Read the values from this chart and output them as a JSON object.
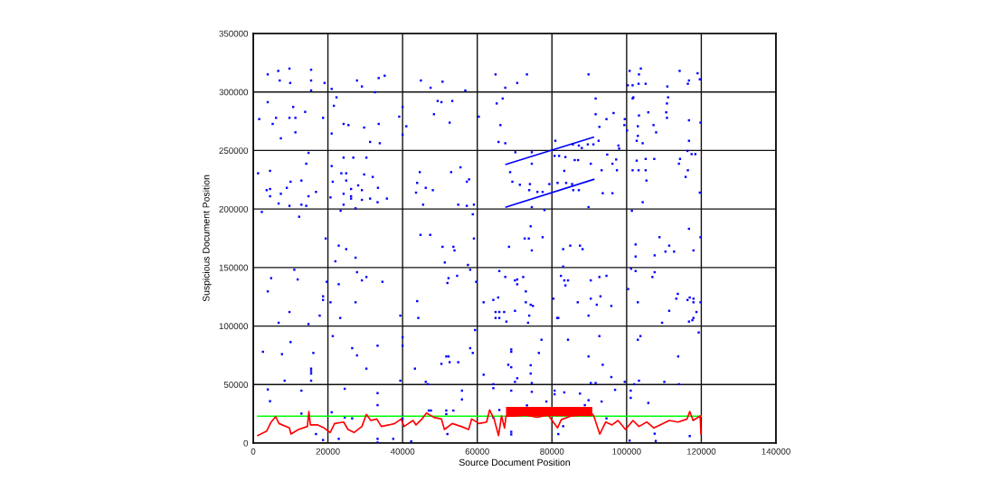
{
  "chart_data": {
    "type": "scatter",
    "xlabel": "Source Document Position",
    "ylabel": "Suspicious Document Position",
    "xlim": [
      0,
      140000
    ],
    "xticks": [
      0,
      20000,
      40000,
      60000,
      80000,
      100000,
      120000,
      140000
    ],
    "ylim": [
      0,
      350000
    ],
    "yticks": [
      0,
      50000,
      100000,
      150000,
      200000,
      250000,
      300000,
      350000
    ],
    "grid": true,
    "legend": false,
    "series": [
      {
        "marker": "square",
        "color": "#0000ff",
        "x": [
          3880,
          6700,
          9700,
          15500,
          7100,
          9900,
          15500,
          19100,
          15500,
          21000,
          27800,
          29100,
          33600,
          35200,
          32600,
          44900,
          47500,
          50700,
          56800,
          64900,
          67500,
          3880,
          10700,
          13900,
          1600,
          6100,
          9700,
          11300,
          18700,
          5200,
          11300,
          7400,
          22300,
          21600,
          24200,
          25500,
          29700,
          33600,
          31300,
          33900,
          21000,
          40000,
          39100,
          41000,
          40000,
          49400,
          50400,
          53300,
          48400,
          52600,
          60400,
          65200,
          66800,
          66200,
          65700,
          67500,
          14800,
          14200,
          4500,
          1300,
          10000,
          12900,
          3600,
          4500,
          9000,
          7400,
          16800,
          4500,
          14800,
          6800,
          9700,
          12900,
          14200,
          2300,
          12300,
          24200,
          26800,
          30300,
          21000,
          23600,
          24900,
          29700,
          32000,
          21300,
          24900,
          28100,
          26200,
          29100,
          33400,
          24200,
          26200,
          26200,
          29100,
          31300,
          33300,
          35800,
          20700,
          24200,
          27400,
          23400,
          44600,
          43900,
          46200,
          43600,
          48100,
          53000,
          55500,
          57800,
          57200,
          45500,
          54900,
          57200,
          59100,
          58800,
          44800,
          47400,
          59100,
          19400,
          73300,
          70700,
          89800,
          100800,
          103800,
          103300,
          114200,
          119000,
          116700,
          116400,
          100300,
          101600,
          103200,
          105100,
          110900,
          119600,
          91700,
          91700,
          96500,
          94600,
          92700,
          99500,
          99400,
          100100,
          101600,
          101800,
          111100,
          110800,
          110600,
          110800,
          103300,
          105800,
          107200,
          103000,
          107900,
          103000,
          102700,
          104300,
          116700,
          119800,
          116700,
          80900,
          92500,
          91100,
          87200,
          88000,
          89600,
          85600,
          97800,
          98000,
          70200,
          74600,
          80700,
          81900,
          83600,
          87000,
          86100,
          90400,
          94800,
          97200,
          96200,
          93300,
          97400,
          83300,
          74600,
          68800,
          69400,
          71400,
          74100,
          79300,
          81500,
          83800,
          85400,
          73900,
          76100,
          77500,
          85700,
          87200,
          93600,
          96200,
          74600,
          78000,
          89800,
          101400,
          102700,
          105100,
          107400,
          114300,
          114000,
          116300,
          117400,
          118400,
          116400,
          101600,
          103200,
          105100,
          115800,
          105300,
          104300,
          119600,
          74300,
          72700,
          73800,
          77500,
          116700,
          108800,
          119800,
          22900,
          24900,
          27400,
          22000,
          50700,
          53600,
          53900,
          51300,
          57500,
          58100,
          68500,
          11000,
          4800,
          11900,
          3900,
          18700,
          18700,
          9700,
          17800,
          6800,
          14800,
          19700,
          27800,
          30300,
          29100,
          34600,
          22900,
          20700,
          27400,
          23300,
          39400,
          52300,
          52000,
          54600,
          43900,
          44200,
          59700,
          65900,
          67500,
          64300,
          65600,
          61700,
          64900,
          65900,
          67200,
          64900,
          65900,
          67800,
          2600,
          10000,
          7700,
          16100,
          15500,
          15500,
          15500,
          8400,
          15500,
          21300,
          26500,
          27800,
          33300,
          30300,
          40000,
          40000,
          39400,
          43300,
          50400,
          51700,
          52300,
          52600,
          54900,
          58100,
          58800,
          59400,
          61700,
          68300,
          69100,
          69100,
          69100,
          46200,
          46800,
          64300,
          74600,
          83000,
          84900,
          87500,
          88200,
          102400,
          102400,
          107500,
          111400,
          110400,
          112700,
          117900,
          70100,
          70700,
          70700,
          72300,
          73000,
          73000,
          74300,
          74900,
          70100,
          73900,
          73600,
          82400,
          83300,
          84300,
          83600,
          90400,
          92700,
          94600,
          80400,
          86900,
          90400,
          93000,
          92000,
          95900,
          89800,
          81400,
          81700,
          83000,
          101200,
          102400,
          107500,
          106900,
          100400,
          103000,
          113700,
          113300,
          116300,
          116900,
          117900,
          117900,
          111400,
          118700,
          117900,
          117600,
          116700,
          109500,
          119800,
          77200,
          76500,
          74300,
          74300,
          70700,
          74600,
          70100,
          84300,
          92700,
          89800,
          93600,
          95900,
          90400,
          91700,
          99500,
          103000,
          103700,
          113800,
          103300,
          102000,
          110100,
          114000,
          119300,
          3900,
          4500,
          12900,
          12900,
          16800,
          18700,
          21000,
          24500,
          24500,
          26500,
          22900,
          33300,
          33300,
          33300,
          33300,
          37500,
          40000,
          40000,
          42300,
          47000,
          47600,
          51700,
          53600,
          51700,
          52000,
          55900,
          55900,
          64300,
          69100,
          65900,
          64300,
          69100,
          69100,
          74600,
          78500,
          80700,
          80700,
          83300,
          87500,
          89800,
          93300,
          96900,
          94600,
          81700,
          83000,
          101100,
          101100,
          105800,
          100800,
          107500,
          107800,
          116900,
          73300,
          88800
        ],
        "values": [
          315000,
          318000,
          320000,
          319000,
          309800,
          307700,
          309800,
          307700,
          301300,
          302600,
          309800,
          304700,
          311900,
          313900,
          299800,
          309800,
          303600,
          308800,
          301300,
          315000,
          303600,
          291300,
          287200,
          283000,
          276800,
          277900,
          277900,
          277900,
          277900,
          272700,
          265500,
          260400,
          295400,
          288200,
          272700,
          271700,
          269600,
          272700,
          257300,
          256200,
          264500,
          287200,
          278900,
          270700,
          263500,
          292300,
          291300,
          292300,
          281000,
          273800,
          278900,
          290200,
          294400,
          271700,
          257300,
          256200,
          248000,
          238700,
          232600,
          230500,
          223300,
          224300,
          216100,
          217100,
          218100,
          213000,
          214600,
          210900,
          210900,
          204700,
          202700,
          203700,
          202700,
          197500,
          193400,
          243900,
          243900,
          243900,
          236700,
          230500,
          230500,
          229500,
          227400,
          223300,
          224300,
          220200,
          217100,
          216100,
          218100,
          213000,
          210900,
          208900,
          207800,
          208900,
          205800,
          208900,
          209900,
          203700,
          200600,
          198500,
          231500,
          222300,
          218100,
          214000,
          216100,
          231500,
          235600,
          225300,
          223300,
          203700,
          203700,
          202700,
          203700,
          195500,
          177900,
          177900,
          174800,
          174800,
          315000,
          307700,
          315000,
          318000,
          320000,
          315000,
          318000,
          316000,
          309800,
          307000,
          305700,
          305700,
          307000,
          307000,
          304700,
          310800,
          294400,
          281000,
          282000,
          276800,
          270200,
          276800,
          271700,
          267100,
          294400,
          295400,
          295400,
          290200,
          282600,
          277900,
          279900,
          282600,
          271700,
          270700,
          265500,
          262500,
          258300,
          256200,
          275800,
          273800,
          258300,
          258300,
          258300,
          255200,
          254200,
          252100,
          255200,
          255200,
          254200,
          251600,
          248500,
          248500,
          245400,
          245400,
          244400,
          241800,
          241800,
          238700,
          246500,
          242300,
          238700,
          233100,
          233100,
          232600,
          238700,
          231500,
          223300,
          220700,
          221300,
          221300,
          222300,
          222300,
          221300,
          216100,
          214600,
          214600,
          216100,
          216100,
          213500,
          213500,
          201600,
          199100,
          201600,
          198500,
          241300,
          242800,
          242800,
          242800,
          238700,
          249600,
          246900,
          246900,
          233100,
          233100,
          233100,
          233100,
          227400,
          224300,
          205800,
          214000,
          185200,
          174800,
          174800,
          175900,
          183100,
          175900,
          175900,
          168700,
          165700,
          158400,
          155300,
          167700,
          167700,
          164600,
          154300,
          152200,
          148100,
          167700,
          148100,
          140900,
          139800,
          129600,
          125400,
          122300,
          112000,
          108900,
          102800,
          101700,
          137800,
          146000,
          141900,
          139000,
          137800,
          135700,
          120300,
          120300,
          106900,
          108900,
          140900,
          136800,
          142900,
          121300,
          106900,
          137800,
          147000,
          142000,
          122300,
          124400,
          120300,
          112000,
          112000,
          112000,
          106900,
          106900,
          103800,
          78000,
          86300,
          76000,
          77000,
          63600,
          61500,
          59400,
          53300,
          53300,
          91400,
          81100,
          74900,
          83200,
          63600,
          90400,
          83200,
          53300,
          63600,
          67700,
          74000,
          74000,
          69100,
          69100,
          81100,
          77000,
          96600,
          58400,
          66900,
          64800,
          78000,
          80000,
          52300,
          50300,
          50300,
          164600,
          165700,
          168700,
          168700,
          165700,
          169700,
          159400,
          160400,
          168700,
          163600,
          163600,
          164600,
          139000,
          139800,
          135700,
          141900,
          129600,
          120300,
          118200,
          117200,
          113000,
          108900,
          102800,
          142900,
          139000,
          139000,
          134700,
          139000,
          141900,
          142900,
          123400,
          120300,
          123400,
          125400,
          118200,
          117200,
          108900,
          106900,
          106900,
          150800,
          149000,
          147000,
          146000,
          141900,
          131600,
          120300,
          127500,
          123400,
          122300,
          124400,
          123400,
          120300,
          113000,
          112000,
          106900,
          105000,
          103800,
          102800,
          120300,
          88300,
          77000,
          66500,
          59400,
          55400,
          51300,
          52300,
          88300,
          91400,
          74000,
          66900,
          56400,
          51300,
          51300,
          52300,
          88300,
          91400,
          74000,
          53300,
          50300,
          52300,
          50300,
          94500,
          45800,
          35800,
          44800,
          25200,
          7700,
          2600,
          26300,
          46400,
          21900,
          21100,
          3600,
          42700,
          32400,
          3600,
          500,
          3600,
          23200,
          20600,
          1500,
          27800,
          27800,
          27800,
          27800,
          24700,
          7700,
          44800,
          37300,
          46900,
          44800,
          28300,
          21900,
          9600,
          7400,
          43800,
          35500,
          44800,
          41700,
          43300,
          42300,
          36600,
          35500,
          45500,
          21100,
          7700,
          14400,
          44800,
          38600,
          34300,
          2100,
          8000,
          1800,
          6000,
          32200,
          32400
        ]
      },
      {
        "type": "line",
        "color": "#0000ff",
        "x": [
          67700,
          91100
        ],
        "values": [
          238200,
          261400
        ]
      },
      {
        "type": "line",
        "color": "#0000ff",
        "x": [
          67700,
          91200
        ],
        "values": [
          201600,
          225300
        ]
      },
      {
        "type": "line",
        "color": "#00ff00",
        "x": [
          1200,
          120000
        ],
        "values": [
          23000,
          23000
        ]
      },
      {
        "type": "line",
        "color": "#ff0000",
        "x": [
          1200,
          3600,
          4800,
          6000,
          6900,
          9700,
          10100,
          12100,
          14500,
          14900,
          15300,
          17300,
          19000,
          20600,
          21800,
          24200,
          25400,
          27000,
          29100,
          30300,
          31500,
          33100,
          34300,
          36300,
          37900,
          39600,
          40400,
          42800,
          43600,
          45200,
          46400,
          48400,
          50400,
          51200,
          53300,
          55700,
          57700,
          58500,
          60500,
          62500,
          63300,
          64500,
          65700,
          66500,
          67300,
          67700,
          70000,
          73000,
          76000,
          79000,
          81500,
          82500,
          85000,
          88000,
          90800,
          91200,
          92800,
          94400,
          96100,
          97700,
          99700,
          101700,
          103300,
          105400,
          107300,
          109700,
          111400,
          113800,
          116200,
          116900,
          117800,
          119700,
          119900
        ],
        "values": [
          6400,
          10300,
          18000,
          22600,
          16700,
          12900,
          7700,
          11600,
          14200,
          27000,
          15500,
          15500,
          12900,
          9000,
          16700,
          18000,
          11600,
          9000,
          14200,
          24500,
          19300,
          20600,
          14200,
          15500,
          16700,
          20600,
          14200,
          19300,
          15500,
          20600,
          25700,
          21900,
          20600,
          11600,
          16700,
          14200,
          11600,
          20600,
          16700,
          18000,
          28300,
          20600,
          6400,
          23200,
          12900,
          23000,
          23000,
          24000,
          22000,
          24000,
          13000,
          20000,
          23000,
          24000,
          25000,
          23200,
          7700,
          18000,
          15500,
          19300,
          11600,
          19300,
          14200,
          18000,
          12900,
          16700,
          19300,
          18000,
          20600,
          27000,
          19300,
          23200,
          7700
        ],
        "lower": [
          null,
          null,
          null,
          null,
          null,
          null,
          null,
          null,
          null,
          null,
          null,
          null,
          null,
          null,
          null,
          null,
          null,
          null,
          null,
          null,
          null,
          null,
          null,
          null,
          null,
          null,
          null,
          null,
          null,
          null,
          null,
          null,
          null,
          null,
          null,
          null,
          null,
          null,
          null,
          null,
          null,
          null,
          null,
          null,
          null,
          23000,
          23000,
          23000,
          23000,
          23000,
          23000,
          23000,
          23000,
          23000,
          23000,
          null,
          null,
          null,
          null,
          null,
          null,
          null,
          null,
          null,
          null,
          null,
          null,
          null,
          null,
          null,
          null,
          null,
          null
        ],
        "upper": [
          null,
          null,
          null,
          null,
          null,
          null,
          null,
          null,
          null,
          null,
          null,
          null,
          null,
          null,
          null,
          null,
          null,
          null,
          null,
          null,
          null,
          null,
          null,
          null,
          null,
          null,
          null,
          null,
          null,
          null,
          null,
          null,
          null,
          null,
          null,
          null,
          null,
          null,
          null,
          null,
          null,
          null,
          null,
          null,
          null,
          31000,
          31000,
          31000,
          31000,
          31000,
          31000,
          31000,
          31000,
          31000,
          31000,
          null,
          null,
          null,
          null,
          null,
          null,
          null,
          null,
          null,
          null,
          null,
          null,
          null,
          null,
          null,
          null,
          null,
          null
        ]
      }
    ]
  }
}
